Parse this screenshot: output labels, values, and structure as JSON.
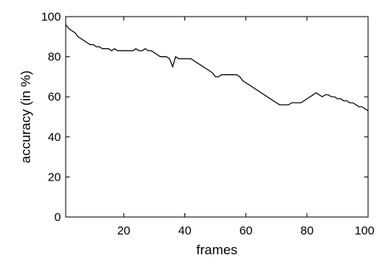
{
  "chart_data": {
    "type": "line",
    "title": "",
    "xlabel": "frames",
    "ylabel": "accuracy (in %)",
    "xlim": [
      1,
      100
    ],
    "ylim": [
      0,
      100
    ],
    "xticks": [
      20,
      40,
      60,
      80,
      100
    ],
    "yticks": [
      0,
      20,
      40,
      60,
      80,
      100
    ],
    "grid": false,
    "series": [
      {
        "color": "#000000",
        "x": [
          1,
          2,
          3,
          4,
          5,
          6,
          7,
          8,
          9,
          10,
          11,
          12,
          13,
          14,
          15,
          16,
          17,
          18,
          19,
          20,
          21,
          22,
          23,
          24,
          25,
          26,
          27,
          28,
          29,
          30,
          31,
          32,
          33,
          34,
          35,
          36,
          37,
          38,
          39,
          40,
          41,
          42,
          43,
          44,
          45,
          46,
          47,
          48,
          49,
          50,
          51,
          52,
          53,
          54,
          55,
          56,
          57,
          58,
          59,
          60,
          61,
          62,
          63,
          64,
          65,
          66,
          67,
          68,
          69,
          70,
          71,
          72,
          73,
          74,
          75,
          76,
          77,
          78,
          79,
          80,
          81,
          82,
          83,
          84,
          85,
          86,
          87,
          88,
          89,
          90,
          91,
          92,
          93,
          94,
          95,
          96,
          97,
          98,
          99,
          100
        ],
        "y": [
          96,
          94,
          93,
          92,
          90,
          89,
          88,
          87,
          86,
          86,
          85,
          85,
          84,
          84,
          84,
          83,
          84,
          83,
          83,
          83,
          83,
          83,
          83,
          84,
          83,
          83,
          84,
          83,
          83,
          82,
          81,
          80,
          80,
          80,
          79,
          75,
          80,
          79,
          79,
          79,
          79,
          79,
          78,
          77,
          76,
          75,
          74,
          73,
          72,
          70,
          70,
          71,
          71,
          71,
          71,
          71,
          71,
          70,
          68,
          67,
          66,
          65,
          64,
          63,
          62,
          61,
          60,
          59,
          58,
          57,
          56,
          56,
          56,
          56,
          57,
          57,
          57,
          57,
          58,
          59,
          60,
          61,
          62,
          61,
          60,
          61,
          61,
          60,
          60,
          59,
          59,
          58,
          58,
          57,
          57,
          56,
          55,
          55,
          54,
          53
        ]
      }
    ]
  }
}
